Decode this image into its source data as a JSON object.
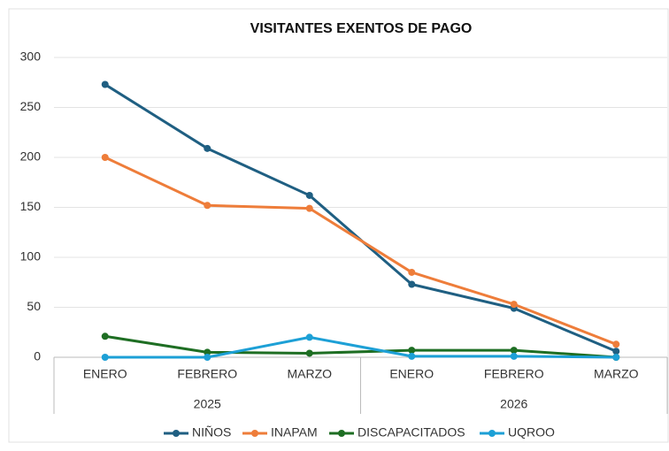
{
  "chart_data": {
    "type": "line",
    "title": "VISITANTES EXENTOS DE PAGO",
    "categories": [
      "ENERO",
      "FEBRERO",
      "MARZO",
      "ENERO",
      "FEBRERO",
      "MARZO"
    ],
    "groups": [
      "2025",
      "2026"
    ],
    "series": [
      {
        "name": "NIÑOS",
        "color": "#1f5f82",
        "values": [
          273,
          209,
          162,
          73,
          49,
          6
        ]
      },
      {
        "name": "INAPAM",
        "color": "#ee7d3a",
        "values": [
          200,
          152,
          149,
          85,
          53,
          13
        ]
      },
      {
        "name": "DISCAPACITADOS",
        "color": "#1e6e23",
        "values": [
          21,
          5,
          4,
          7,
          7,
          0
        ]
      },
      {
        "name": "UQROO",
        "color": "#1da0d6",
        "values": [
          0,
          0,
          20,
          1,
          1,
          0
        ]
      }
    ],
    "ylim": [
      0,
      300
    ],
    "yticks": [
      0,
      50,
      100,
      150,
      200,
      250,
      300
    ],
    "grid": true,
    "legend": "bottom"
  }
}
